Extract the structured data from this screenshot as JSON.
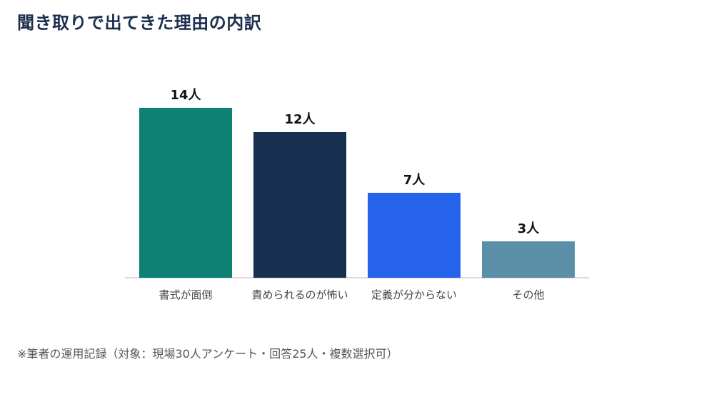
{
  "page": {
    "title": "聞き取りで出てきた理由の内訳",
    "footnote": "※筆者の運用記録（対象：現場30人アンケート・回答25人・複数選択可）"
  },
  "chart_data": {
    "type": "bar",
    "categories": [
      "書式が面倒",
      "責められるのが怖い",
      "定義が分からない",
      "その他"
    ],
    "values": [
      14,
      12,
      7,
      3
    ],
    "value_labels": [
      "14人",
      "12人",
      "7人",
      "3人"
    ],
    "colors": [
      "#0f8074",
      "#17304f",
      "#2563eb",
      "#5b8fa8"
    ],
    "title": "",
    "xlabel": "",
    "ylabel": "",
    "grid": false,
    "legend": "none"
  }
}
